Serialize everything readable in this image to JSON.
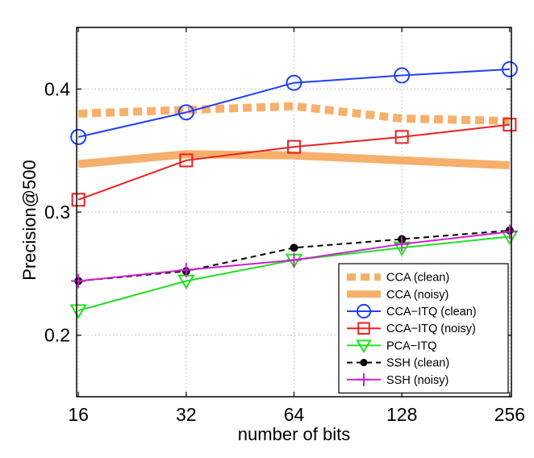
{
  "chart_data": {
    "type": "line",
    "title": "",
    "xlabel": "number of bits",
    "ylabel": "Precision@500",
    "x": [
      16,
      32,
      64,
      128,
      256
    ],
    "x_tick_labels": [
      "16",
      "32",
      "64",
      "128",
      "256"
    ],
    "x_scale": "log2",
    "ylim": [
      0.15,
      0.45
    ],
    "y_ticks": [
      0.2,
      0.3,
      0.4
    ],
    "y_tick_labels": [
      "0.2",
      "0.3",
      "0.4"
    ],
    "grid": true,
    "legend_position": "bottom-right",
    "series": [
      {
        "name": "CCA (clean)",
        "values": [
          0.38,
          0.383,
          0.386,
          0.376,
          0.374
        ],
        "color": "#f7b06b",
        "style": "thick-dotted",
        "marker": "none"
      },
      {
        "name": "CCA (noisy)",
        "values": [
          0.339,
          0.347,
          0.346,
          0.342,
          0.338
        ],
        "color": "#f7b06b",
        "style": "thick-solid",
        "marker": "none"
      },
      {
        "name": "CCA−ITQ (clean)",
        "values": [
          0.361,
          0.381,
          0.405,
          0.411,
          0.416
        ],
        "color": "#1f3fff",
        "style": "solid",
        "marker": "circle"
      },
      {
        "name": "CCA−ITQ (noisy)",
        "values": [
          0.31,
          0.342,
          0.353,
          0.361,
          0.371
        ],
        "color": "#ee2020",
        "style": "solid",
        "marker": "square"
      },
      {
        "name": "PCA−ITQ",
        "values": [
          0.22,
          0.244,
          0.261,
          0.271,
          0.28
        ],
        "color": "#22e022",
        "style": "solid",
        "marker": "triangle-down"
      },
      {
        "name": "SSH (clean)",
        "values": [
          0.244,
          0.252,
          0.271,
          0.278,
          0.285
        ],
        "color": "#000000",
        "style": "dashed",
        "marker": "dot"
      },
      {
        "name": "SSH (noisy)",
        "values": [
          0.244,
          0.253,
          0.261,
          0.274,
          0.284
        ],
        "color": "#cc22cc",
        "style": "solid",
        "marker": "plus"
      }
    ]
  }
}
